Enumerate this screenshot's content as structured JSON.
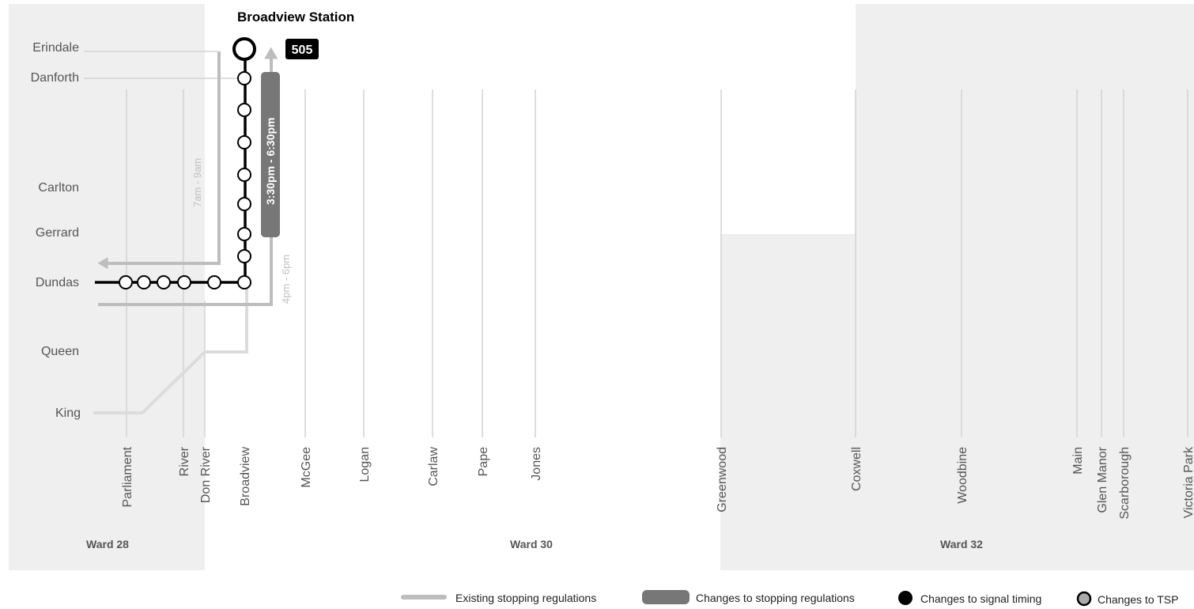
{
  "title": "Broadview Station",
  "route_badge": "505",
  "east_west_streets": [
    "Erindale",
    "Danforth",
    "Carlton",
    "Gerrard",
    "Dundas",
    "Queen",
    "King"
  ],
  "north_south_streets": [
    "Parliament",
    "River",
    "Don River",
    "Broadview",
    "McGee",
    "Logan",
    "Carlaw",
    "Pape",
    "Jones",
    "Greenwood",
    "Coxwell",
    "Woodbine",
    "Main",
    "Glen Manor",
    "Scarborough",
    "Victoria Park"
  ],
  "wards": [
    "Ward 28",
    "Ward 30",
    "Ward 32"
  ],
  "periods": {
    "am_existing": "7am - 9am",
    "pm_existing": "4pm - 6pm",
    "pm_change": "3:30pm - 6:30pm"
  },
  "legend": [
    {
      "name": "existing-stopping",
      "label": "Existing stopping regulations",
      "color": "#bdbdbd"
    },
    {
      "name": "changes-stopping",
      "label": "Changes to stopping regulations",
      "color": "#777777"
    },
    {
      "name": "changes-signal",
      "label": "Changes to signal timing",
      "color": "#000000"
    },
    {
      "name": "changes-tsp",
      "label": "Changes to TSP",
      "color": "#aaaaaa"
    }
  ],
  "colors": {
    "ward_shade": "#efefef",
    "street_line": "#d4d4d4",
    "existing": "#bdbdbd",
    "change": "#777777",
    "route": "#000000"
  }
}
